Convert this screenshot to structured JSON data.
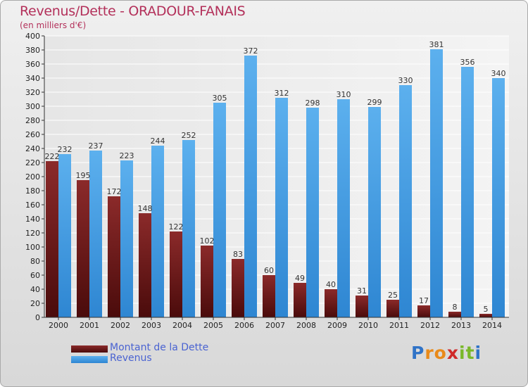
{
  "chart_data": {
    "type": "bar",
    "title": "Revenus/Dette - ORADOUR-FANAIS",
    "subtitle": "(en milliers d'€)",
    "categories": [
      "2000",
      "2001",
      "2002",
      "2003",
      "2004",
      "2005",
      "2006",
      "2007",
      "2008",
      "2009",
      "2010",
      "2011",
      "2012",
      "2013",
      "2014"
    ],
    "series": [
      {
        "name": "Montant de la Dette",
        "color": "#7a1a1a",
        "values": [
          222,
          195,
          172,
          148,
          122,
          102,
          83,
          60,
          49,
          40,
          31,
          25,
          17,
          8,
          5
        ]
      },
      {
        "name": "Revenus",
        "color": "#4aa3e6",
        "values": [
          232,
          237,
          223,
          244,
          252,
          305,
          372,
          312,
          298,
          310,
          299,
          330,
          381,
          356,
          340
        ]
      }
    ],
    "ylim": [
      0,
      400
    ],
    "ytick_step": 20,
    "grid": true,
    "legend_position": "bottom-left"
  },
  "logo": {
    "letters": [
      "P",
      "r",
      "o",
      "x",
      "i",
      "t",
      "i"
    ],
    "colors": [
      "#2f73c7",
      "#e98a1a",
      "#e98a1a",
      "#cf2a2a",
      "#7ab82a",
      "#7ab82a",
      "#2f73c7"
    ]
  }
}
